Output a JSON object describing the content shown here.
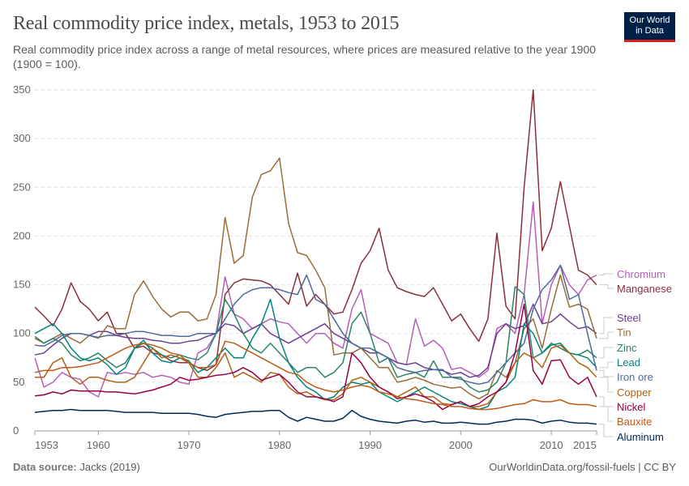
{
  "header": {
    "title": "Real commodity price index, metals, 1953 to 2015",
    "subtitle": "Real commodity price index across a range of metal resources, where prices are measured relative to the year 1900 (1900 = 100).",
    "logo_line1": "Our World",
    "logo_line2": "in Data"
  },
  "footer": {
    "source_label": "Data source:",
    "source": "Jacks (2019)",
    "link": "OurWorldinData.org/fossil-fuels | CC BY"
  },
  "chart_data": {
    "type": "line",
    "title": "Real commodity price index, metals, 1953 to 2015",
    "xlim": [
      1953,
      2015
    ],
    "ylim": [
      0,
      350
    ],
    "y_ticks": [
      0,
      50,
      100,
      150,
      200,
      250,
      300,
      350
    ],
    "x_ticks": [
      1953,
      1960,
      1970,
      1980,
      1990,
      2000,
      2010,
      2015
    ],
    "grid": "horizontal dashed",
    "legend": "right (end labels)",
    "x_start": 1953,
    "series": [
      {
        "name": "Chromium",
        "color": "#b55fb8",
        "values": [
          75,
          45,
          50,
          60,
          55,
          53,
          40,
          35,
          60,
          58,
          60,
          58,
          60,
          55,
          57,
          55,
          50,
          48,
          80,
          85,
          100,
          158,
          120,
          115,
          105,
          110,
          115,
          112,
          110,
          100,
          90,
          100,
          100,
          90,
          85,
          125,
          145,
          100,
          95,
          90,
          70,
          68,
          115,
          87,
          93,
          85,
          63,
          65,
          60,
          55,
          62,
          105,
          110,
          100,
          140,
          235,
          110,
          150,
          170,
          150,
          140,
          155,
          160
        ]
      },
      {
        "name": "Manganese",
        "color": "#883039",
        "values": [
          127,
          118,
          108,
          125,
          152,
          133,
          125,
          113,
          122,
          100,
          100,
          85,
          87,
          80,
          78,
          72,
          70,
          70,
          65,
          62,
          68,
          140,
          152,
          156,
          155,
          154,
          150,
          140,
          130,
          162,
          128,
          140,
          130,
          120,
          122,
          145,
          172,
          185,
          208,
          165,
          147,
          143,
          140,
          138,
          147,
          130,
          113,
          120,
          105,
          92,
          115,
          203,
          128,
          115,
          250,
          350,
          185,
          208,
          256,
          210,
          165,
          160,
          150
        ]
      },
      {
        "name": "Steel",
        "color": "#6d3e91",
        "values": [
          78,
          80,
          88,
          95,
          100,
          100,
          98,
          102,
          102,
          98,
          96,
          95,
          95,
          93,
          92,
          90,
          90,
          92,
          93,
          97,
          100,
          110,
          108,
          100,
          105,
          110,
          100,
          95,
          90,
          95,
          100,
          105,
          110,
          100,
          95,
          90,
          85,
          80,
          80,
          75,
          70,
          68,
          70,
          65,
          63,
          62,
          58,
          60,
          55,
          57,
          65,
          100,
          110,
          105,
          108,
          130,
          110,
          112,
          120,
          112,
          105,
          107,
          100
        ]
      },
      {
        "name": "Tin",
        "color": "#996d39",
        "values": [
          95,
          90,
          95,
          100,
          95,
          90,
          98,
          95,
          108,
          105,
          105,
          140,
          154,
          138,
          125,
          117,
          122,
          122,
          113,
          115,
          140,
          219,
          172,
          180,
          240,
          263,
          267,
          280,
          213,
          183,
          180,
          165,
          147,
          78,
          80,
          80,
          85,
          75,
          65,
          65,
          50,
          52,
          55,
          52,
          48,
          46,
          44,
          45,
          38,
          33,
          38,
          62,
          55,
          70,
          105,
          115,
          85,
          125,
          160,
          127,
          130,
          125,
          95
        ]
      },
      {
        "name": "Zinc",
        "color": "#2c8465",
        "values": [
          97,
          90,
          95,
          90,
          78,
          72,
          75,
          80,
          72,
          65,
          70,
          85,
          90,
          85,
          78,
          75,
          78,
          75,
          73,
          80,
          100,
          135,
          120,
          100,
          85,
          80,
          90,
          80,
          70,
          60,
          65,
          65,
          55,
          60,
          70,
          110,
          122,
          100,
          70,
          75,
          55,
          58,
          60,
          55,
          72,
          55,
          55,
          55,
          45,
          40,
          42,
          50,
          70,
          148,
          140,
          75,
          80,
          90,
          85,
          80,
          78,
          83,
          75
        ]
      },
      {
        "name": "Lead",
        "color": "#00847e",
        "values": [
          100,
          105,
          110,
          100,
          85,
          75,
          72,
          75,
          68,
          58,
          65,
          85,
          93,
          80,
          72,
          70,
          75,
          72,
          60,
          65,
          75,
          85,
          75,
          75,
          95,
          110,
          135,
          95,
          70,
          55,
          45,
          40,
          32,
          35,
          45,
          50,
          48,
          50,
          40,
          35,
          30,
          35,
          40,
          45,
          40,
          35,
          30,
          28,
          25,
          22,
          25,
          40,
          45,
          55,
          110,
          100,
          80,
          88,
          90,
          80,
          78,
          75,
          65
        ]
      },
      {
        "name": "Iron ore",
        "color": "#4c6a9c",
        "values": [
          88,
          87,
          92,
          98,
          100,
          100,
          98,
          96,
          98,
          98,
          100,
          102,
          102,
          100,
          98,
          98,
          97,
          97,
          100,
          100,
          100,
          115,
          130,
          140,
          145,
          147,
          147,
          145,
          142,
          140,
          160,
          135,
          130,
          115,
          100,
          90,
          85,
          85,
          80,
          75,
          65,
          62,
          60,
          62,
          63,
          63,
          55,
          53,
          50,
          48,
          50,
          60,
          70,
          80,
          90,
          125,
          145,
          155,
          170,
          135,
          140,
          100,
          62
        ]
      },
      {
        "name": "Copper",
        "color": "#b16214",
        "values": [
          55,
          55,
          70,
          75,
          55,
          48,
          55,
          55,
          52,
          50,
          50,
          55,
          70,
          85,
          75,
          78,
          75,
          70,
          55,
          55,
          65,
          80,
          55,
          60,
          55,
          50,
          60,
          58,
          45,
          38,
          40,
          35,
          32,
          32,
          38,
          52,
          55,
          50,
          45,
          40,
          35,
          40,
          45,
          35,
          35,
          28,
          27,
          30,
          25,
          25,
          28,
          40,
          50,
          70,
          80,
          75,
          65,
          85,
          88,
          80,
          70,
          65,
          55
        ]
      },
      {
        "name": "Nickel",
        "color": "#970046",
        "values": [
          36,
          37,
          40,
          38,
          42,
          41,
          41,
          41,
          40,
          40,
          39,
          38,
          40,
          42,
          45,
          48,
          55,
          52,
          53,
          55,
          57,
          58,
          60,
          65,
          60,
          52,
          55,
          58,
          50,
          40,
          35,
          35,
          33,
          30,
          35,
          80,
          70,
          55,
          45,
          40,
          33,
          35,
          38,
          35,
          30,
          22,
          27,
          30,
          25,
          28,
          35,
          40,
          50,
          80,
          130,
          62,
          48,
          72,
          73,
          55,
          48,
          55,
          35
        ]
      },
      {
        "name": "Bauxite",
        "color": "#c05917",
        "values": [
          60,
          62,
          62,
          65,
          65,
          66,
          68,
          70,
          75,
          80,
          85,
          88,
          90,
          88,
          85,
          80,
          78,
          70,
          65,
          65,
          68,
          92,
          90,
          85,
          80,
          75,
          70,
          65,
          60,
          58,
          50,
          45,
          42,
          40,
          42,
          45,
          47,
          45,
          40,
          38,
          35,
          33,
          32,
          30,
          28,
          27,
          25,
          25,
          23,
          22,
          22,
          23,
          25,
          27,
          28,
          32,
          30,
          30,
          32,
          28,
          27,
          27,
          25
        ]
      },
      {
        "name": "Aluminum",
        "color": "#00295b",
        "values": [
          19,
          20,
          21,
          21,
          22,
          21,
          21,
          21,
          21,
          20,
          19,
          19,
          19,
          19,
          18,
          18,
          18,
          18,
          17,
          15,
          14,
          17,
          18,
          19,
          20,
          20,
          21,
          21,
          14,
          10,
          14,
          12,
          10,
          10,
          13,
          21,
          15,
          12,
          10,
          9,
          8,
          10,
          11,
          9,
          10,
          8,
          8,
          9,
          8,
          7,
          7,
          9,
          10,
          12,
          12,
          11,
          8,
          10,
          11,
          9,
          8,
          8,
          7
        ]
      }
    ]
  }
}
